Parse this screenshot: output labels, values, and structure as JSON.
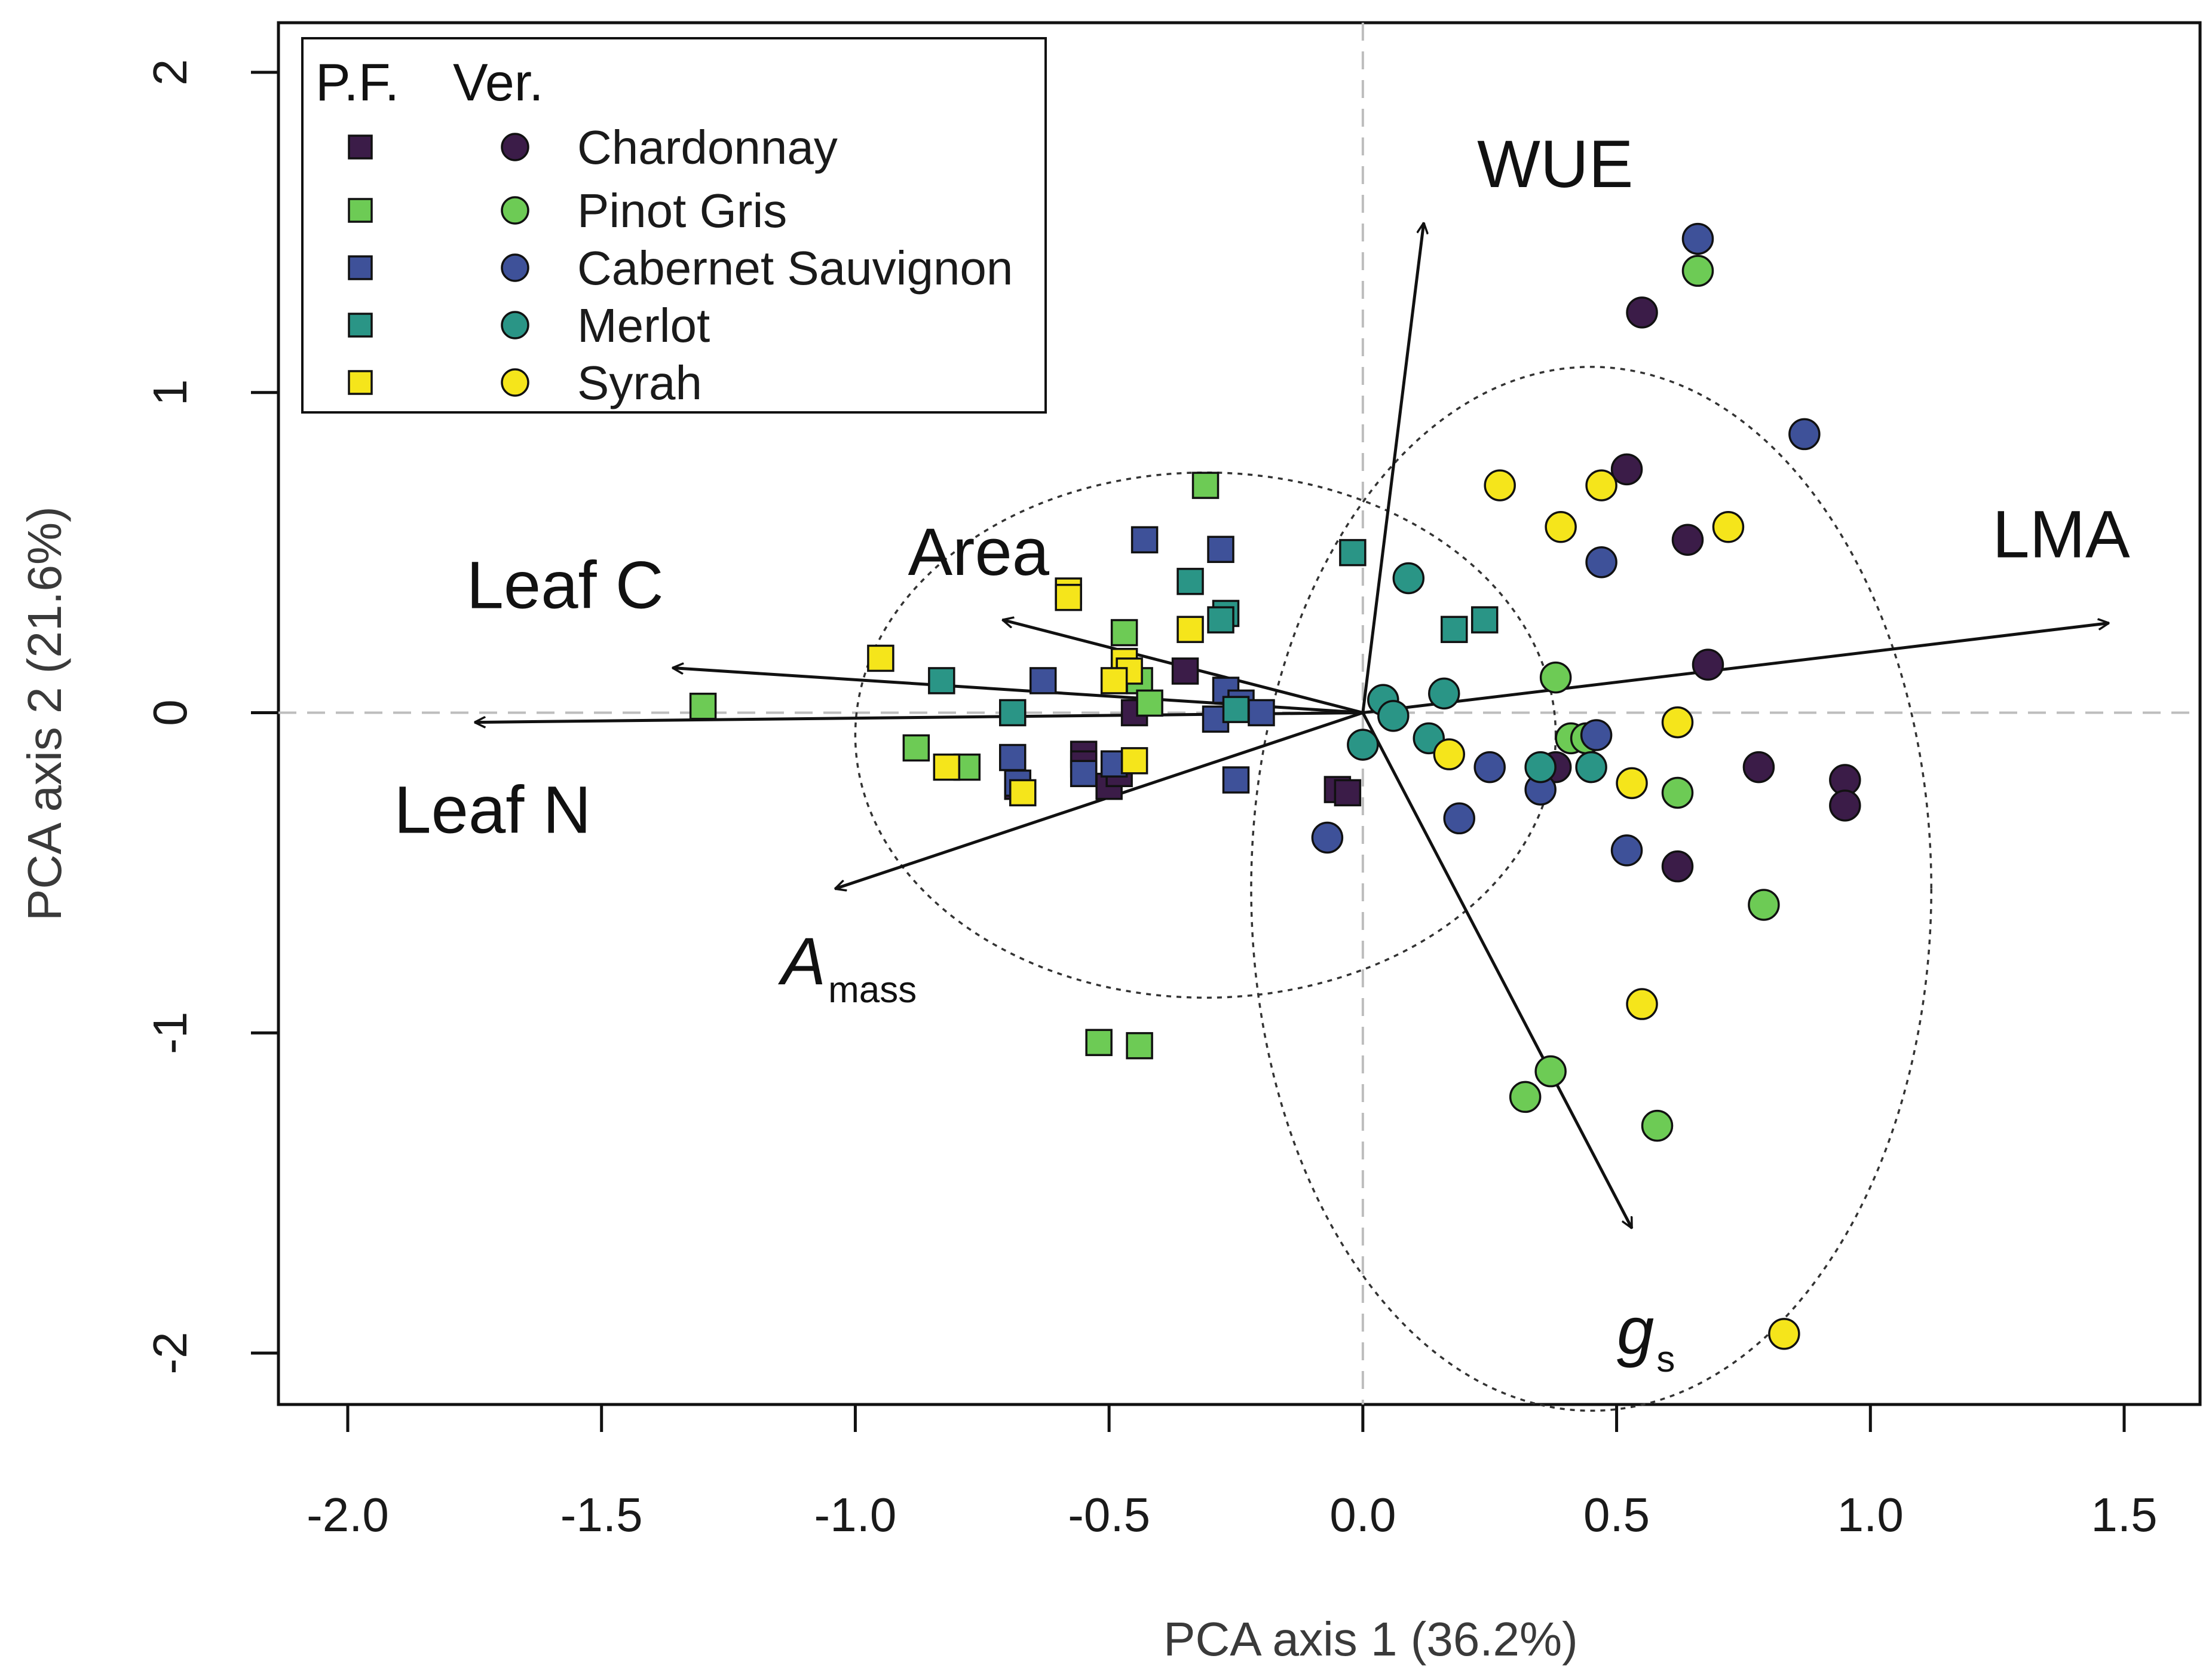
{
  "chart_data": {
    "type": "scatter",
    "title": "",
    "xlabel": "PCA axis 1 (36.2%)",
    "ylabel": "PCA axis 2 (21.6%)",
    "xlim": [
      -2.0,
      1.5
    ],
    "ylim": [
      -2.0,
      2.0
    ],
    "xticks": [
      -2.0,
      -1.5,
      -1.0,
      -0.5,
      0.0,
      0.5,
      1.0,
      1.5
    ],
    "xtick_labels": [
      "-2.0",
      "-1.5",
      "-1.0",
      "-0.5",
      "0.0",
      "0.5",
      "1.0",
      "1.5"
    ],
    "yticks": [
      -2,
      -1,
      0,
      1,
      2
    ],
    "ytick_labels": [
      "-2",
      "-1",
      "0",
      "1",
      "2"
    ],
    "legend": {
      "position": "top-left",
      "header_pf": "P.F.",
      "header_ver": "Ver.",
      "entries": [
        {
          "label": "Chardonnay",
          "color": "#3b1c48"
        },
        {
          "label": "Pinot Gris",
          "color": "#6dcb55"
        },
        {
          "label": "Cabernet Sauvignon",
          "color": "#3e5199"
        },
        {
          "label": "Merlot",
          "color": "#2a9586"
        },
        {
          "label": "Syrah",
          "color": "#f5e51b"
        }
      ]
    },
    "vectors": [
      {
        "name": "WUE",
        "label": "WUE",
        "x": 0.12,
        "y": 1.53
      },
      {
        "name": "LMA",
        "label": "LMA",
        "x": 1.47,
        "y": 0.28
      },
      {
        "name": "Area",
        "label": "Area",
        "x": -0.71,
        "y": 0.29
      },
      {
        "name": "Leaf C",
        "label": "Leaf C",
        "x": -1.36,
        "y": 0.14
      },
      {
        "name": "Leaf N",
        "label": "Leaf N",
        "x": -1.75,
        "y": -0.03
      },
      {
        "name": "A_mass",
        "label": "A",
        "sub": "mass",
        "italic": true,
        "x": -1.04,
        "y": -0.55
      },
      {
        "name": "g_s",
        "label": "g",
        "sub": "s",
        "italic": true,
        "x": 0.53,
        "y": -1.61
      }
    ],
    "ellipses": [
      {
        "name": "pf-ellipse",
        "cx": -0.31,
        "cy": -0.07,
        "rx": 0.69,
        "ry": 0.82
      },
      {
        "name": "ver-ellipse",
        "cx": 0.45,
        "cy": -0.55,
        "rx": 0.67,
        "ry": 1.63
      }
    ],
    "series": [
      {
        "name": "Chardonnay (P.F.)",
        "stage": "P.F.",
        "marker": "square",
        "color": "#3b1c48",
        "points": [
          [
            -0.35,
            0.13
          ],
          [
            -0.45,
            0.0
          ],
          [
            -0.55,
            -0.13
          ],
          [
            -0.55,
            -0.16
          ],
          [
            -0.68,
            -0.23
          ],
          [
            -0.5,
            -0.23
          ],
          [
            -0.48,
            -0.19
          ],
          [
            -0.05,
            -0.24
          ],
          [
            -0.03,
            -0.25
          ]
        ]
      },
      {
        "name": "Pinot Gris (P.F.)",
        "stage": "P.F.",
        "marker": "square",
        "color": "#6dcb55",
        "points": [
          [
            -1.3,
            0.02
          ],
          [
            -0.31,
            0.71
          ],
          [
            -0.47,
            0.25
          ],
          [
            -0.44,
            0.1
          ],
          [
            -0.42,
            0.03
          ],
          [
            -0.88,
            -0.11
          ],
          [
            -0.78,
            -0.17
          ],
          [
            -0.52,
            -1.03
          ],
          [
            -0.44,
            -1.04
          ]
        ]
      },
      {
        "name": "Cabernet Sauvignon (P.F.)",
        "stage": "P.F.",
        "marker": "square",
        "color": "#3e5199",
        "points": [
          [
            -0.43,
            0.54
          ],
          [
            -0.28,
            0.51
          ],
          [
            -0.63,
            0.1
          ],
          [
            -0.69,
            -0.14
          ],
          [
            -0.55,
            -0.19
          ],
          [
            -0.49,
            -0.16
          ],
          [
            -0.25,
            -0.21
          ],
          [
            -0.27,
            0.07
          ],
          [
            -0.24,
            0.03
          ],
          [
            -0.2,
            0.0
          ],
          [
            -0.29,
            -0.02
          ],
          [
            -0.68,
            -0.22
          ]
        ]
      },
      {
        "name": "Merlot (P.F.)",
        "stage": "P.F.",
        "marker": "square",
        "color": "#2a9586",
        "points": [
          [
            -0.34,
            0.41
          ],
          [
            -0.27,
            0.31
          ],
          [
            -0.28,
            0.29
          ],
          [
            -0.83,
            0.1
          ],
          [
            -0.69,
            0.0
          ],
          [
            -0.25,
            0.01
          ],
          [
            -0.02,
            0.5
          ],
          [
            0.18,
            0.26
          ],
          [
            0.24,
            0.29
          ]
        ]
      },
      {
        "name": "Syrah (P.F.)",
        "stage": "P.F.",
        "marker": "square",
        "color": "#f5e51b",
        "points": [
          [
            -0.58,
            0.38
          ],
          [
            -0.58,
            0.36
          ],
          [
            -0.34,
            0.26
          ],
          [
            -0.95,
            0.17
          ],
          [
            -0.47,
            0.16
          ],
          [
            -0.46,
            0.13
          ],
          [
            -0.49,
            0.1
          ],
          [
            -0.82,
            -0.17
          ],
          [
            -0.45,
            -0.15
          ],
          [
            -0.67,
            -0.25
          ]
        ]
      },
      {
        "name": "Chardonnay (Ver.)",
        "stage": "Ver.",
        "marker": "circle",
        "color": "#3b1c48",
        "points": [
          [
            0.55,
            1.25
          ],
          [
            0.52,
            0.76
          ],
          [
            0.64,
            0.54
          ],
          [
            0.68,
            0.15
          ],
          [
            0.78,
            -0.17
          ],
          [
            0.95,
            -0.21
          ],
          [
            0.95,
            -0.29
          ],
          [
            0.62,
            -0.48
          ],
          [
            0.38,
            -0.17
          ]
        ]
      },
      {
        "name": "Pinot Gris (Ver.)",
        "stage": "Ver.",
        "marker": "circle",
        "color": "#6dcb55",
        "points": [
          [
            0.66,
            1.38
          ],
          [
            0.38,
            0.11
          ],
          [
            0.41,
            -0.08
          ],
          [
            0.44,
            -0.08
          ],
          [
            0.62,
            -0.25
          ],
          [
            0.79,
            -0.6
          ],
          [
            0.32,
            -1.2
          ],
          [
            0.37,
            -1.12
          ],
          [
            0.58,
            -1.29
          ]
        ]
      },
      {
        "name": "Cabernet Sauvignon (Ver.)",
        "stage": "Ver.",
        "marker": "circle",
        "color": "#3e5199",
        "points": [
          [
            0.66,
            1.48
          ],
          [
            0.87,
            0.87
          ],
          [
            0.47,
            0.47
          ],
          [
            0.25,
            -0.17
          ],
          [
            0.35,
            -0.24
          ],
          [
            0.46,
            -0.07
          ],
          [
            0.52,
            -0.43
          ],
          [
            0.19,
            -0.33
          ],
          [
            -0.07,
            -0.39
          ]
        ]
      },
      {
        "name": "Merlot (Ver.)",
        "stage": "Ver.",
        "marker": "circle",
        "color": "#2a9586",
        "points": [
          [
            0.09,
            0.42
          ],
          [
            0.16,
            0.06
          ],
          [
            0.04,
            0.04
          ],
          [
            0.06,
            -0.01
          ],
          [
            -0.0,
            -0.1
          ],
          [
            0.13,
            -0.08
          ],
          [
            0.35,
            -0.17
          ],
          [
            0.45,
            -0.17
          ]
        ]
      },
      {
        "name": "Syrah (Ver.)",
        "stage": "Ver.",
        "marker": "circle",
        "color": "#f5e51b",
        "points": [
          [
            0.27,
            0.71
          ],
          [
            0.47,
            0.71
          ],
          [
            0.39,
            0.58
          ],
          [
            0.72,
            0.58
          ],
          [
            0.62,
            -0.03
          ],
          [
            0.53,
            -0.22
          ],
          [
            0.17,
            -0.13
          ],
          [
            0.55,
            -0.91
          ],
          [
            0.83,
            -1.94
          ]
        ]
      }
    ]
  }
}
